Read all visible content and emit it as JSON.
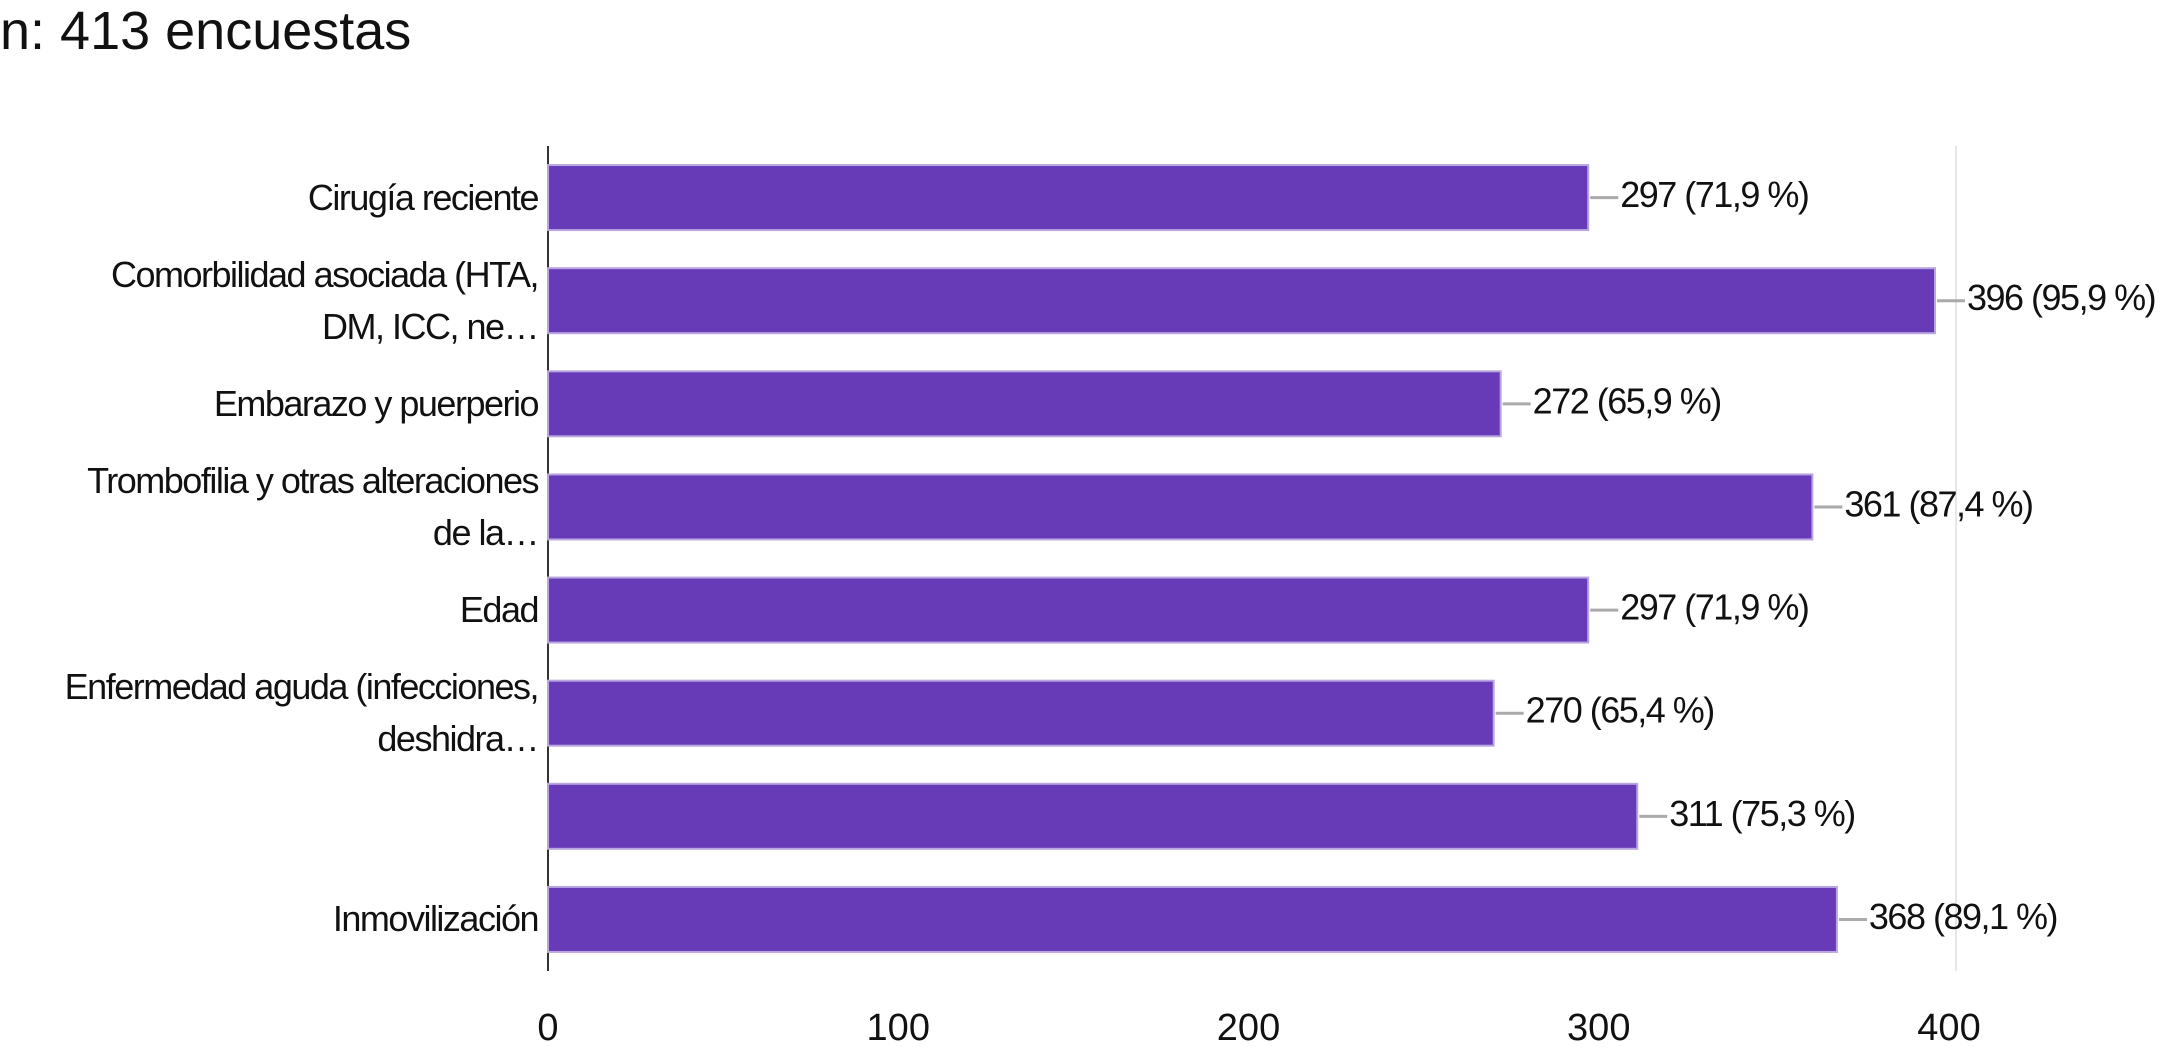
{
  "chart_data": {
    "type": "bar",
    "orientation": "horizontal",
    "title": "n: 413 encuestas",
    "categories": [
      "Cirugía reciente",
      "Comorbilidad asociada (HTA,\nDM, ICC, ne…",
      "Embarazo y puerperio",
      "Trombofilia y otras alteraciones\nde la…",
      "Edad",
      "Enfermedad aguda (infecciones,\ndeshidra…",
      null,
      "Inmovilización"
    ],
    "values": [
      297,
      396,
      272,
      361,
      297,
      270,
      311,
      368
    ],
    "value_labels": [
      "297 (71,9 %)",
      "396 (95,9 %)",
      "272 (65,9 %)",
      "361 (87,4 %)",
      "297 (71,9 %)",
      "270 (65,4 %)",
      "311 (75,3 %)",
      "368 (89,1 %)"
    ],
    "color": "#673ab7",
    "xlim": [
      0,
      400
    ],
    "xticks": [
      0,
      100,
      200,
      300,
      400
    ]
  }
}
